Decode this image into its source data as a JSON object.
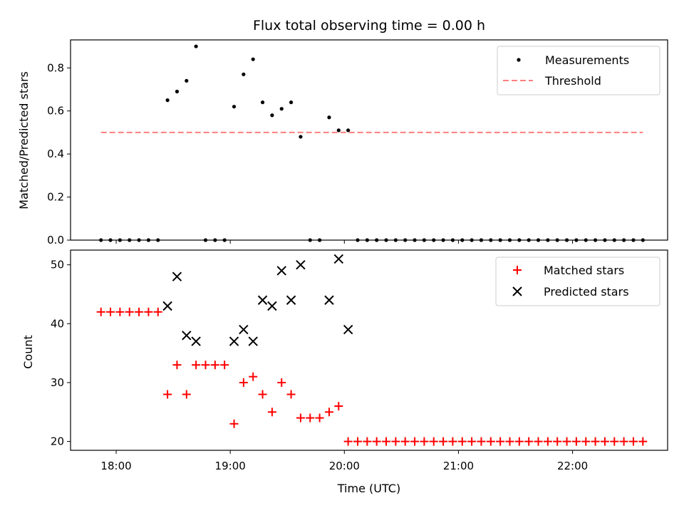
{
  "chart_data": [
    {
      "type": "scatter",
      "title": "Flux total observing time = 0.00 h",
      "ylabel": "Matched/Predicted stars",
      "xlabel": "",
      "xlim": [
        "17:36",
        "22:50"
      ],
      "ylim": [
        0,
        0.93
      ],
      "yticks": [
        0.0,
        0.2,
        0.4,
        0.6,
        0.8
      ],
      "ytick_labels": [
        "0.0",
        "0.2",
        "0.4",
        "0.6",
        "0.8"
      ],
      "xticks": [
        "18:00",
        "19:00",
        "20:00",
        "21:00",
        "22:00"
      ],
      "legend_position": "top-right",
      "grid": false,
      "x": [
        "17:52",
        "17:57",
        "18:02",
        "18:07",
        "18:12",
        "18:17",
        "18:22",
        "18:27",
        "18:32",
        "18:37",
        "18:42",
        "18:47",
        "18:52",
        "18:57",
        "19:02",
        "19:07",
        "19:12",
        "19:17",
        "19:22",
        "19:27",
        "19:32",
        "19:37",
        "19:42",
        "19:47",
        "19:52",
        "19:57",
        "20:02",
        "20:07",
        "20:12",
        "20:17",
        "20:22",
        "20:27",
        "20:32",
        "20:37",
        "20:42",
        "20:47",
        "20:52",
        "20:57",
        "21:02",
        "21:07",
        "21:12",
        "21:17",
        "21:22",
        "21:27",
        "21:32",
        "21:37",
        "21:42",
        "21:47",
        "21:52",
        "21:57",
        "22:02",
        "22:07",
        "22:12",
        "22:17",
        "22:22",
        "22:27",
        "22:32",
        "22:37"
      ],
      "series": [
        {
          "name": "Measurements",
          "marker": "dot",
          "color": "#000000",
          "values": [
            0,
            0,
            0,
            0,
            0,
            0,
            0,
            0.65,
            0.69,
            0.74,
            0.9,
            0,
            0,
            0,
            0.62,
            0.77,
            0.84,
            0.64,
            0.58,
            0.61,
            0.64,
            0.48,
            0,
            0,
            0.57,
            0.51,
            0.51,
            0,
            0,
            0,
            0,
            0,
            0,
            0,
            0,
            0,
            0,
            0,
            0,
            0,
            0,
            0,
            0,
            0,
            0,
            0,
            0,
            0,
            0,
            0,
            0,
            0,
            0,
            0,
            0,
            0,
            0,
            0
          ]
        },
        {
          "name": "Threshold",
          "style": "dashed-line",
          "color": "#ff7f7f",
          "x": [
            "17:52",
            "22:37"
          ],
          "values": [
            0.5,
            0.5
          ]
        }
      ]
    },
    {
      "type": "scatter",
      "title": "",
      "ylabel": "Count",
      "xlabel": "Time (UTC)",
      "xlim": [
        "17:36",
        "22:50"
      ],
      "ylim": [
        18.5,
        52.5
      ],
      "yticks": [
        20,
        30,
        40,
        50
      ],
      "ytick_labels": [
        "20",
        "30",
        "40",
        "50"
      ],
      "xticks": [
        "18:00",
        "19:00",
        "20:00",
        "21:00",
        "22:00"
      ],
      "legend_position": "top-right",
      "grid": false,
      "x": [
        "17:52",
        "17:57",
        "18:02",
        "18:07",
        "18:12",
        "18:17",
        "18:22",
        "18:27",
        "18:32",
        "18:37",
        "18:42",
        "18:47",
        "18:52",
        "18:57",
        "19:02",
        "19:07",
        "19:12",
        "19:17",
        "19:22",
        "19:27",
        "19:32",
        "19:37",
        "19:42",
        "19:47",
        "19:52",
        "19:57",
        "20:02",
        "20:07",
        "20:12",
        "20:17",
        "20:22",
        "20:27",
        "20:32",
        "20:37",
        "20:42",
        "20:47",
        "20:52",
        "20:57",
        "21:02",
        "21:07",
        "21:12",
        "21:17",
        "21:22",
        "21:27",
        "21:32",
        "21:37",
        "21:42",
        "21:47",
        "21:52",
        "21:57",
        "22:02",
        "22:07",
        "22:12",
        "22:17",
        "22:22",
        "22:27",
        "22:32",
        "22:37"
      ],
      "series": [
        {
          "name": "Matched stars",
          "marker": "plus",
          "color": "#ff0000",
          "values": [
            42,
            42,
            42,
            42,
            42,
            42,
            42,
            28,
            33,
            28,
            33,
            33,
            33,
            33,
            23,
            30,
            31,
            28,
            25,
            30,
            28,
            24,
            24,
            24,
            25,
            26,
            20,
            20,
            20,
            20,
            20,
            20,
            20,
            20,
            20,
            20,
            20,
            20,
            20,
            20,
            20,
            20,
            20,
            20,
            20,
            20,
            20,
            20,
            20,
            20,
            20,
            20,
            20,
            20,
            20,
            20,
            20,
            20
          ]
        },
        {
          "name": "Predicted stars",
          "marker": "x",
          "color": "#000000",
          "values": [
            null,
            null,
            null,
            null,
            null,
            null,
            null,
            43,
            48,
            38,
            37,
            null,
            null,
            null,
            37,
            39,
            37,
            44,
            43,
            49,
            44,
            50,
            null,
            null,
            44,
            51,
            39,
            null,
            null,
            null,
            null,
            null,
            null,
            null,
            null,
            null,
            null,
            null,
            null,
            null,
            null,
            null,
            null,
            null,
            null,
            null,
            null,
            null,
            null,
            null,
            null,
            null,
            null,
            null,
            null,
            null,
            null,
            null
          ]
        }
      ]
    }
  ]
}
